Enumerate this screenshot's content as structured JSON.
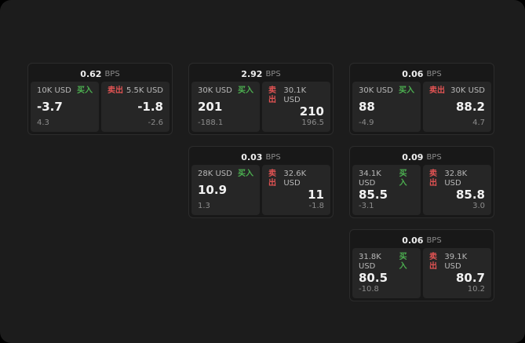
{
  "colors": {
    "buy_green": "#4caf50",
    "sell_red": "#e05353",
    "surface": "#1c1c1c"
  },
  "labels": {
    "buy": "买入",
    "sell": "卖出",
    "unit": "BPS"
  },
  "cards": [
    {
      "bps_value": "0.62",
      "bps_unit": "BPS",
      "buy": {
        "amount": "10K USD",
        "label": "买入",
        "price": "-3.7",
        "delta": "4.3"
      },
      "sell": {
        "amount": "5.5K USD",
        "label": "卖出",
        "price": "-1.8",
        "delta": "-2.6"
      }
    },
    {
      "bps_value": "2.92",
      "bps_unit": "BPS",
      "buy": {
        "amount": "30K USD",
        "label": "买入",
        "price": "201",
        "delta": "-188.1"
      },
      "sell": {
        "amount": "30.1K USD",
        "label": "卖出",
        "price": "210",
        "delta": "196.5"
      }
    },
    {
      "bps_value": "0.06",
      "bps_unit": "BPS",
      "buy": {
        "amount": "30K USD",
        "label": "买入",
        "price": "88",
        "delta": "-4.9"
      },
      "sell": {
        "amount": "30K USD",
        "label": "卖出",
        "price": "88.2",
        "delta": "4.7"
      }
    },
    {
      "bps_value": "0.03",
      "bps_unit": "BPS",
      "buy": {
        "amount": "28K USD",
        "label": "买入",
        "price": "10.9",
        "delta": "1.3"
      },
      "sell": {
        "amount": "32.6K USD",
        "label": "卖出",
        "price": "11",
        "delta": "-1.8"
      }
    },
    {
      "bps_value": "0.09",
      "bps_unit": "BPS",
      "buy": {
        "amount": "34.1K USD",
        "label": "买入",
        "price": "85.5",
        "delta": "-3.1"
      },
      "sell": {
        "amount": "32.8K USD",
        "label": "卖出",
        "price": "85.8",
        "delta": "3.0"
      }
    },
    {
      "bps_value": "0.06",
      "bps_unit": "BPS",
      "buy": {
        "amount": "31.8K USD",
        "label": "买入",
        "price": "80.5",
        "delta": "-10.8"
      },
      "sell": {
        "amount": "39.1K USD",
        "label": "卖出",
        "price": "80.7",
        "delta": "10.2"
      }
    }
  ]
}
